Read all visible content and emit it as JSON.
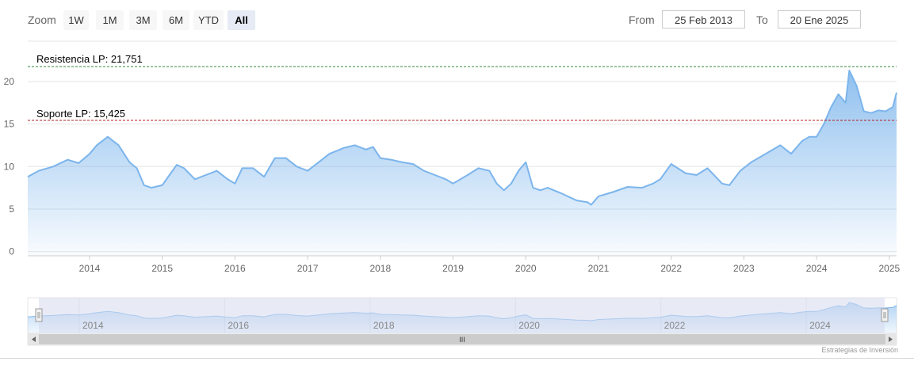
{
  "toolbar": {
    "zoom_label": "Zoom",
    "buttons": [
      {
        "label": "1W",
        "active": false
      },
      {
        "label": "1M",
        "active": false
      },
      {
        "label": "3M",
        "active": false
      },
      {
        "label": "6M",
        "active": false
      },
      {
        "label": "YTD",
        "active": false
      },
      {
        "label": "All",
        "active": true
      }
    ],
    "from_label": "From",
    "from_value": "25 Feb 2013",
    "to_label": "To",
    "to_value": "20 Ene 2025"
  },
  "credit": "Estrategias de Inversión",
  "colors": {
    "series_line": "#7cb5ec",
    "resistance_line": "#2e8b3c",
    "support_line": "#b22222",
    "navigator_mask": "#d5dbee",
    "grid": "#e6e6e6"
  },
  "chart_data": {
    "type": "area",
    "series": [
      {
        "x": [
          2013.15,
          2013.3,
          2013.5,
          2013.7,
          2013.85,
          2014.0,
          2014.1,
          2014.25,
          2014.4,
          2014.55,
          2014.65,
          2014.75,
          2014.85,
          2015.0,
          2015.1,
          2015.2,
          2015.3,
          2015.45,
          2015.6,
          2015.75,
          2015.9,
          2016.0,
          2016.1,
          2016.25,
          2016.4,
          2016.55,
          2016.7,
          2016.85,
          2017.0,
          2017.15,
          2017.3,
          2017.5,
          2017.65,
          2017.8,
          2017.9,
          2018.0,
          2018.15,
          2018.3,
          2018.45,
          2018.6,
          2018.75,
          2018.9,
          2019.0,
          2019.2,
          2019.35,
          2019.5,
          2019.6,
          2019.7,
          2019.8,
          2019.9,
          2020.0,
          2020.1,
          2020.2,
          2020.3,
          2020.5,
          2020.7,
          2020.85,
          2020.9,
          2021.0,
          2021.2,
          2021.4,
          2021.6,
          2021.75,
          2021.85,
          2022.0,
          2022.2,
          2022.35,
          2022.5,
          2022.7,
          2022.8,
          2022.95,
          2023.1,
          2023.3,
          2023.5,
          2023.65,
          2023.8,
          2023.9,
          2024.0,
          2024.1,
          2024.2,
          2024.3,
          2024.4,
          2024.45,
          2024.55,
          2024.65,
          2024.75,
          2024.85,
          2024.95,
          2025.05,
          2025.1
        ],
        "y": [
          8.8,
          9.5,
          10.0,
          10.8,
          10.4,
          11.5,
          12.5,
          13.5,
          12.5,
          10.5,
          9.8,
          7.8,
          7.5,
          7.8,
          9.0,
          10.2,
          9.8,
          8.5,
          9.0,
          9.5,
          8.5,
          8.0,
          9.8,
          9.8,
          8.8,
          11.0,
          11.0,
          10.0,
          9.5,
          10.5,
          11.5,
          12.2,
          12.5,
          12.0,
          12.3,
          11.0,
          10.8,
          10.5,
          10.3,
          9.5,
          9.0,
          8.5,
          8.0,
          9.0,
          9.8,
          9.5,
          8.0,
          7.2,
          8.0,
          9.5,
          10.5,
          7.5,
          7.2,
          7.5,
          6.8,
          6.0,
          5.8,
          5.5,
          6.5,
          7.0,
          7.6,
          7.5,
          8.0,
          8.5,
          10.3,
          9.2,
          9.0,
          9.8,
          8.0,
          7.8,
          9.5,
          10.5,
          11.5,
          12.5,
          11.5,
          13.0,
          13.5,
          13.5,
          15.0,
          17.0,
          18.5,
          17.5,
          21.3,
          19.5,
          16.5,
          16.3,
          16.6,
          16.5,
          17.0,
          18.7
        ],
        "fill": true
      }
    ],
    "x_ticks": [
      "2014",
      "2015",
      "2016",
      "2017",
      "2018",
      "2019",
      "2020",
      "2021",
      "2022",
      "2023",
      "2024",
      "2025"
    ],
    "y_ticks": [
      "0",
      "5",
      "10",
      "15",
      "20"
    ],
    "xlim": [
      2013.15,
      2025.1
    ],
    "ylim": [
      -0.5,
      24
    ],
    "grid": true,
    "annotations": [
      {
        "label": "Resistencia LP: 21,751",
        "value": 21.751,
        "style": "dashed",
        "color": "#2e8b3c"
      },
      {
        "label": "Soporte LP: 15,425",
        "value": 15.425,
        "style": "dashed",
        "color": "#b22222"
      }
    ],
    "navigator": {
      "ticks": [
        "2014",
        "2016",
        "2018",
        "2020",
        "2022",
        "2024"
      ],
      "selected_range": [
        2013.15,
        2025.1
      ],
      "scrollbar_grip": "III"
    }
  }
}
